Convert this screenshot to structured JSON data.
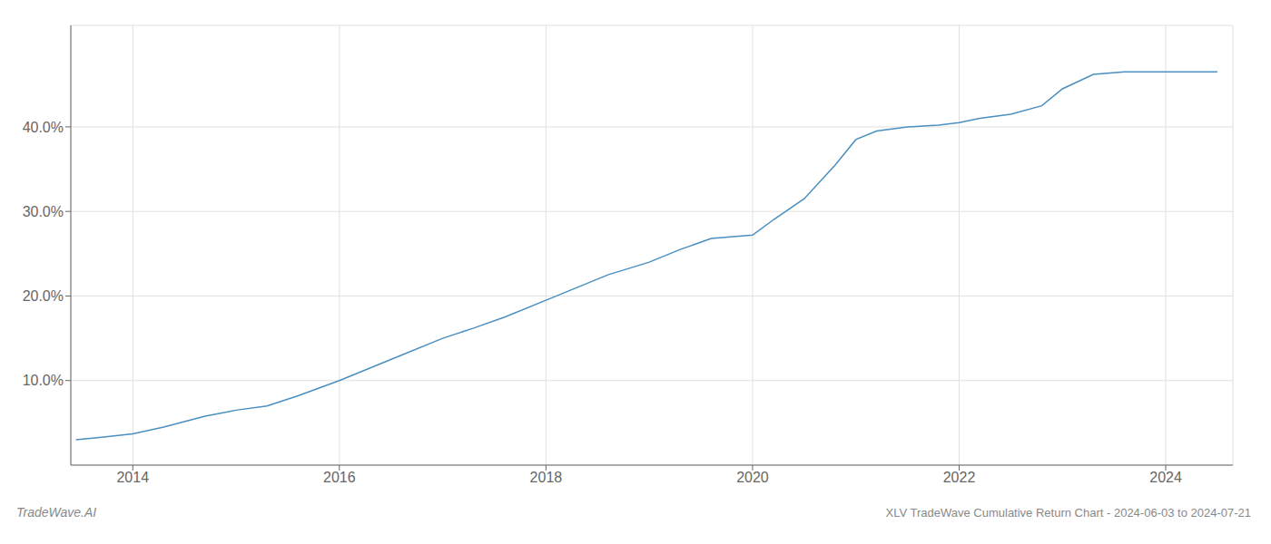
{
  "chart_data": {
    "type": "line",
    "title": "XLV TradeWave Cumulative Return Chart - 2024-06-03 to 2024-07-21",
    "annotations": [
      "TradeWave.AI"
    ],
    "x": [
      2013.45,
      2013.7,
      2014.0,
      2014.3,
      2014.7,
      2015.0,
      2015.3,
      2015.6,
      2016.0,
      2016.3,
      2016.6,
      2017.0,
      2017.3,
      2017.6,
      2018.0,
      2018.3,
      2018.6,
      2019.0,
      2019.3,
      2019.6,
      2020.0,
      2020.2,
      2020.5,
      2020.8,
      2021.0,
      2021.2,
      2021.5,
      2021.8,
      2022.0,
      2022.2,
      2022.5,
      2022.8,
      2023.0,
      2023.3,
      2023.6,
      2024.0,
      2024.3,
      2024.5
    ],
    "values": [
      3.0,
      3.3,
      3.7,
      4.5,
      5.8,
      6.5,
      7.0,
      8.2,
      10.0,
      11.5,
      13.0,
      15.0,
      16.2,
      17.5,
      19.5,
      21.0,
      22.5,
      24.0,
      25.5,
      26.8,
      27.2,
      29.0,
      31.5,
      35.5,
      38.5,
      39.5,
      40.0,
      40.2,
      40.5,
      41.0,
      41.5,
      42.5,
      44.5,
      46.2,
      46.5,
      46.5,
      46.5,
      46.5
    ],
    "color": "#4a8fc0",
    "xlim": [
      2013.4,
      2024.65
    ],
    "ylim": [
      0,
      52
    ],
    "xticks": [
      2014,
      2016,
      2018,
      2020,
      2022,
      2024
    ],
    "yticks": [
      {
        "value": 10.0,
        "label": "10.0%"
      },
      {
        "value": 20.0,
        "label": "20.0%"
      },
      {
        "value": 30.0,
        "label": "30.0%"
      },
      {
        "value": 40.0,
        "label": "40.0%"
      }
    ],
    "grid": true
  }
}
